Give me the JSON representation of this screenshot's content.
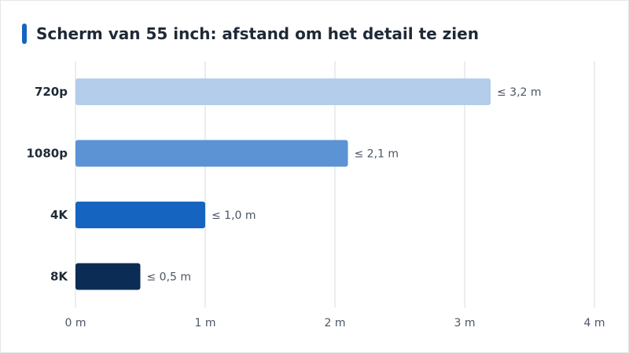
{
  "chart_data": {
    "type": "bar",
    "orientation": "horizontal",
    "title": "Scherm van 55 inch: afstand om het detail te zien",
    "categories": [
      "720p",
      "1080p",
      "4K",
      "8K"
    ],
    "values": [
      3.2,
      2.1,
      1.0,
      0.5
    ],
    "value_labels": [
      "≤ 3,2 m",
      "≤ 2,1 m",
      "≤ 1,0 m",
      "≤ 0,5 m"
    ],
    "bar_colors": [
      "#b3cdeb",
      "#5b93d5",
      "#1565c0",
      "#0b2d55"
    ],
    "xlim": [
      0,
      4
    ],
    "x_ticks": [
      0,
      1,
      2,
      3,
      4
    ],
    "x_tick_labels": [
      "0 m",
      "1 m",
      "2 m",
      "3 m",
      "4 m"
    ],
    "xlabel": "",
    "ylabel": "",
    "grid": "vertical",
    "legend": "none"
  },
  "colors": {
    "accent": "#1565c0",
    "grid": "#e5e7eb",
    "text_dark": "#1f2937",
    "text_muted": "#4b5563"
  }
}
